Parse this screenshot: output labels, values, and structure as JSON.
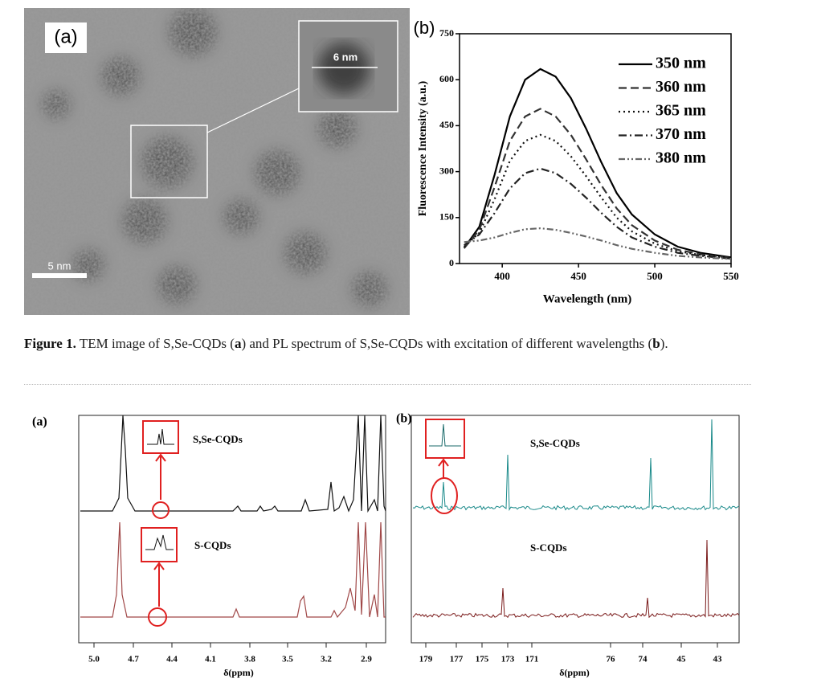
{
  "figure1": {
    "panel_a_label": "(a)",
    "inset_scale": "6 nm",
    "scale_bar": "5 nm",
    "panel_b_label": "(b)"
  },
  "chart_data": {
    "type": "line",
    "ylabel": "Fluorescence Intensity (a.u.)",
    "xlabel": "Wavelength (nm)",
    "xlim": [
      372,
      550
    ],
    "ylim": [
      0,
      750
    ],
    "xticks": [
      400,
      450,
      500,
      550
    ],
    "yticks": [
      0,
      150,
      300,
      450,
      600,
      750
    ],
    "legend": "upper right",
    "x": [
      375,
      385,
      395,
      405,
      415,
      425,
      435,
      445,
      455,
      465,
      475,
      485,
      500,
      515,
      530,
      550
    ],
    "series": [
      {
        "name": "350 nm",
        "color": "#000000",
        "values": [
          50,
          120,
          290,
          480,
          600,
          635,
          610,
          540,
          440,
          330,
          230,
          160,
          95,
          55,
          35,
          20
        ]
      },
      {
        "name": "360 nm",
        "color": "#333333",
        "values": [
          50,
          110,
          250,
          400,
          480,
          505,
          480,
          420,
          340,
          255,
          180,
          125,
          75,
          45,
          30,
          18
        ]
      },
      {
        "name": "365 nm",
        "color": "#111111",
        "values": [
          55,
          100,
          210,
          335,
          400,
          420,
          400,
          350,
          285,
          215,
          150,
          105,
          65,
          40,
          28,
          18
        ]
      },
      {
        "name": "370 nm",
        "color": "#222222",
        "values": [
          60,
          95,
          165,
          245,
          295,
          310,
          295,
          260,
          215,
          165,
          120,
          85,
          55,
          35,
          25,
          16
        ]
      },
      {
        "name": "380 nm",
        "color": "#666666",
        "values": [
          70,
          75,
          85,
          100,
          112,
          115,
          110,
          100,
          88,
          75,
          60,
          48,
          35,
          25,
          20,
          15
        ]
      }
    ]
  },
  "caption": {
    "label": "Figure 1.",
    "parts": [
      "TEM image of S,Se-CQDs (",
      "a",
      ") and PL spectrum of S,Se-CQDs with excitation of different wavelengths (",
      "b",
      ")."
    ]
  },
  "figure2": {
    "panel_a_label": "(a)",
    "panel_b_label": "(b)",
    "left_top_label": "S,Se-CQDs",
    "left_bottom_label": "S-CQDs",
    "right_top_label": "S,Se-CQDs",
    "right_bottom_label": "S-CQDs",
    "left_ticks": [
      "5.0",
      "4.7",
      "4.4",
      "4.1",
      "3.8",
      "3.5",
      "3.2",
      "2.9"
    ],
    "right_ticks": [
      "179",
      "177",
      "175",
      "173",
      "171",
      "76",
      "74",
      "45",
      "43"
    ],
    "axis_label_left": "δ(ppm)",
    "axis_label_right": "δ(ppm)"
  }
}
